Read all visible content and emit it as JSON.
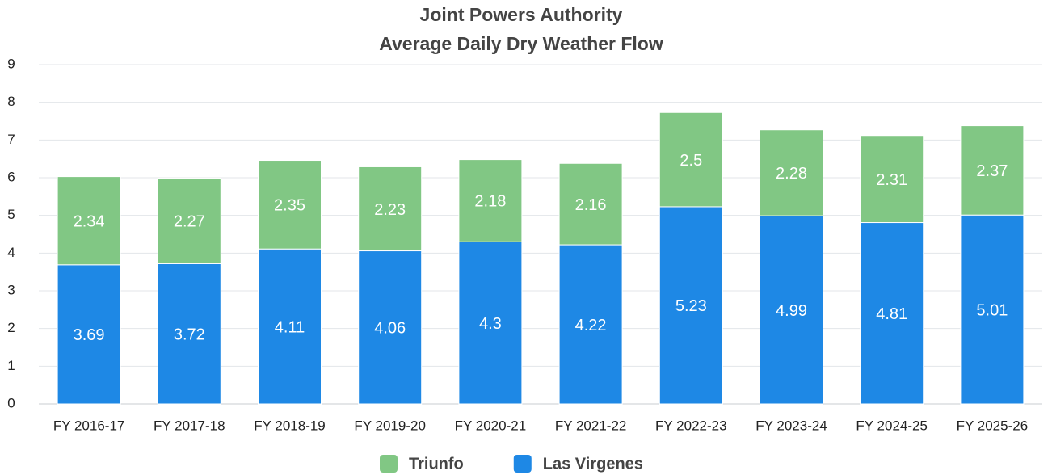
{
  "chart_data": {
    "type": "stacked_bar",
    "title": "Joint Powers Authority",
    "subtitle": "Average Daily Dry Weather Flow",
    "categories": [
      "FY 2016-17",
      "FY 2017-18",
      "FY 2018-19",
      "FY 2019-20",
      "FY 2020-21",
      "FY 2021-22",
      "FY 2022-23",
      "FY 2023-24",
      "FY 2024-25",
      "FY 2025-26"
    ],
    "series": [
      {
        "name": "Las Virgenes",
        "color": "#1e88e5",
        "values": [
          3.69,
          3.72,
          4.11,
          4.06,
          4.3,
          4.22,
          5.23,
          4.99,
          4.81,
          5.01
        ]
      },
      {
        "name": "Triunfo",
        "color": "#81c784",
        "values": [
          2.34,
          2.27,
          2.35,
          2.23,
          2.18,
          2.16,
          2.5,
          2.28,
          2.31,
          2.37
        ]
      }
    ],
    "legend_order": [
      "Triunfo",
      "Las Virgenes"
    ],
    "ylim": [
      0,
      9
    ],
    "yticks": [
      0,
      1,
      2,
      3,
      4,
      5,
      6,
      7,
      8,
      9
    ],
    "grid": true,
    "legend": "bottom"
  }
}
